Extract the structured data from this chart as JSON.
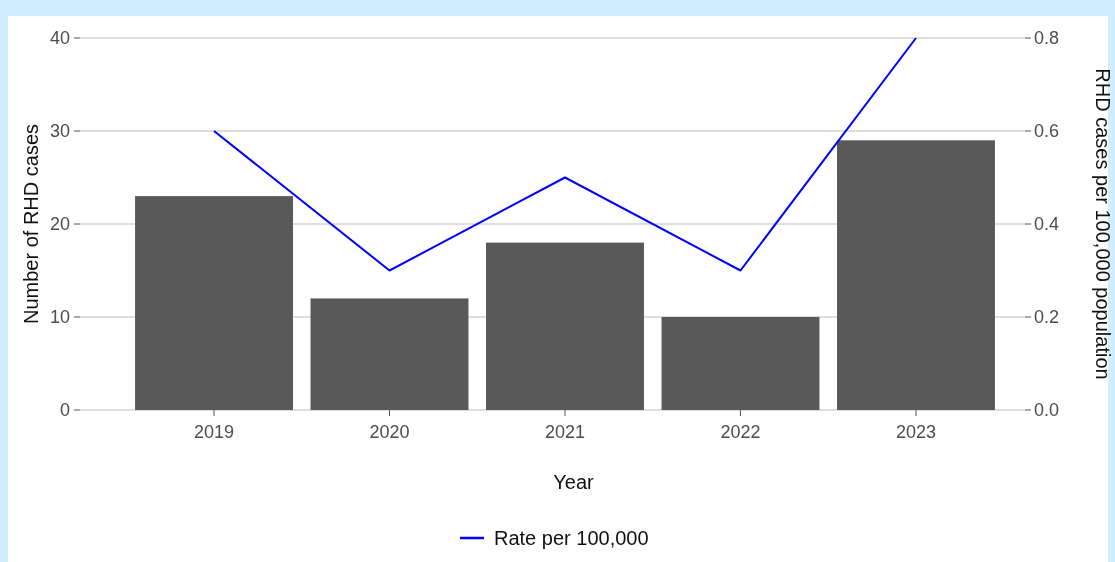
{
  "chart_data": {
    "type": "bar",
    "xlabel": "Year",
    "ylabel": "Number of RHD cases",
    "y2label": "RHD cases per 100,000 population",
    "categories": [
      "2019",
      "2020",
      "2021",
      "2022",
      "2023"
    ],
    "series": [
      {
        "color": "#595959",
        "values": [
          23,
          12,
          18,
          10,
          29
        ]
      },
      {
        "type": "line",
        "name": "Rate per 100,000",
        "axis": "y2",
        "color": "#0000ff",
        "values": [
          0.6,
          0.3,
          0.5,
          0.3,
          0.8
        ]
      }
    ],
    "ylim": [
      0,
      40
    ],
    "yticks": [
      0,
      10,
      20,
      30,
      40
    ],
    "y2lim": [
      0,
      0.8
    ],
    "y2ticks": [
      {
        "value": 0,
        "label": "0.0"
      },
      0.2,
      0.4,
      0.6,
      0.8
    ],
    "grid": "y",
    "legend": "bottom",
    "line_style": "solid",
    "marker": "none"
  }
}
